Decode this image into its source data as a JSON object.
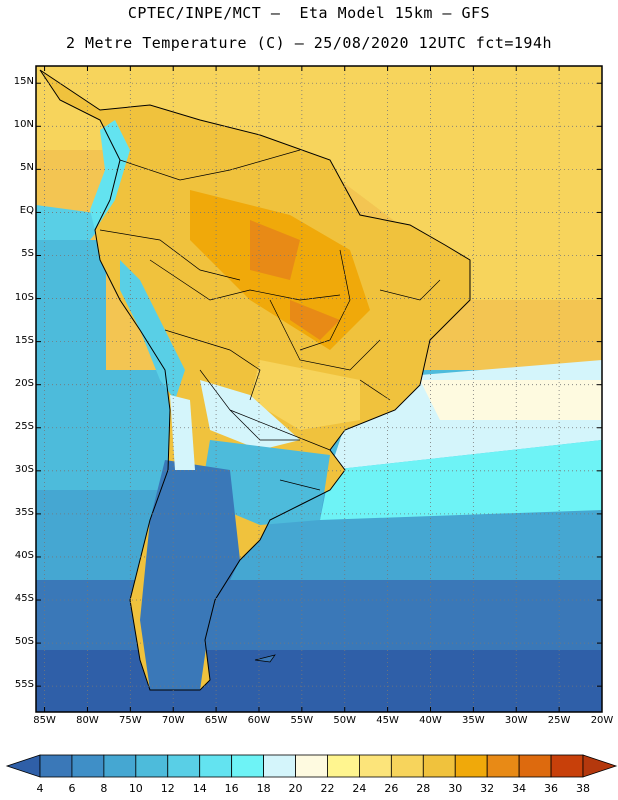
{
  "header": {
    "line1": "CPTEC/INPE/MCT —  Eta Model 15km — GFS",
    "line2": "2 Metre Temperature (C) — 25/08/2020 12UTC fct=194h"
  },
  "map": {
    "lat_labels": [
      "15N",
      "10N",
      "5N",
      "EQ",
      "5S",
      "10S",
      "15S",
      "20S",
      "25S",
      "30S",
      "35S",
      "40S",
      "45S",
      "50S",
      "55S"
    ],
    "lat_values": [
      15,
      10,
      5,
      0,
      -5,
      -10,
      -15,
      -20,
      -25,
      -30,
      -35,
      -40,
      -45,
      -50,
      -55
    ],
    "lon_labels": [
      "85W",
      "80W",
      "75W",
      "70W",
      "65W",
      "60W",
      "55W",
      "50W",
      "45W",
      "40W",
      "35W",
      "30W",
      "25W",
      "20W"
    ],
    "lon_values": [
      -85,
      -80,
      -75,
      -70,
      -65,
      -60,
      -55,
      -50,
      -45,
      -40,
      -35,
      -30,
      -25,
      -20
    ],
    "lat_range": [
      -58,
      17
    ],
    "lon_range": [
      -86,
      -20
    ]
  },
  "colorbar": {
    "labels": [
      "4",
      "6",
      "8",
      "10",
      "12",
      "14",
      "16",
      "18",
      "20",
      "22",
      "24",
      "26",
      "28",
      "30",
      "32",
      "34",
      "36",
      "38"
    ],
    "colors": [
      "#2f5fa8",
      "#3a78b8",
      "#3f8fc7",
      "#45a7d2",
      "#4dbbdb",
      "#59cfe6",
      "#63e3f0",
      "#6ef3f6",
      "#d4f5fb",
      "#fefae0",
      "#fff58f",
      "#fce47a",
      "#f7d45c",
      "#f0c23d",
      "#f0a90a",
      "#e88a16",
      "#dd6a0e",
      "#c8400a",
      "#b4380d"
    ]
  }
}
